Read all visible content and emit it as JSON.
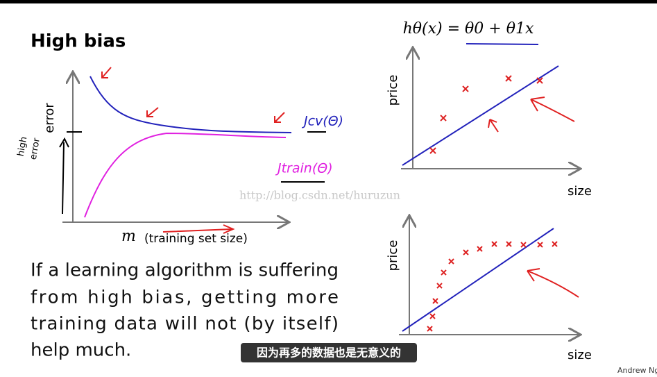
{
  "header": {
    "title": "High bias"
  },
  "left_plot": {
    "y_label": "error",
    "x_symbol": "m",
    "x_label": "(training set size)",
    "cv_label": "Jcv(Θ)",
    "train_label": "Jtrain(Θ)",
    "note": [
      "high",
      "error"
    ]
  },
  "right_plots": {
    "formula": "hθ(x) = θ0 + θ1x",
    "top": {
      "y_label": "price",
      "x_label": "size"
    },
    "bottom": {
      "y_label": "price",
      "x_label": "size"
    }
  },
  "body": {
    "lines": [
      "If a learning algorithm is suffering",
      "from high bias, getting more",
      "training data will not (by itself)",
      "help much."
    ]
  },
  "watermark": "http://blog.csdn.net/huruzun",
  "subtitle": "因为再多的数据也是无意义的",
  "credit": "Andrew Ng"
}
